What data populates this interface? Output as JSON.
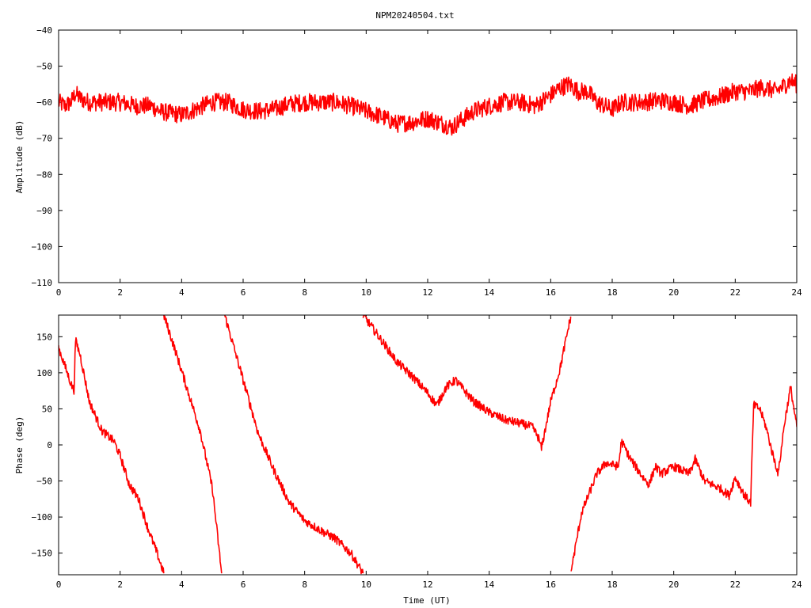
{
  "chart_data": [
    {
      "type": "line",
      "title": "NPM20240504.txt",
      "xlabel": "",
      "ylabel": "Amplitude (dB)",
      "xlim": [
        0,
        24
      ],
      "ylim": [
        -110,
        -40
      ],
      "xticks": [
        "0",
        "2",
        "4",
        "6",
        "8",
        "10",
        "12",
        "14",
        "16",
        "18",
        "20",
        "22",
        "24"
      ],
      "yticks": [
        "-40",
        "-50",
        "-60",
        "-70",
        "-80",
        "-90",
        "-100",
        "-110"
      ],
      "color": "#ff0000",
      "noise_band": 2.5,
      "series": [
        {
          "x": [
            0,
            0.2,
            0.4,
            0.55,
            0.7,
            1.0,
            1.5,
            2.0,
            2.5,
            3.0,
            3.3,
            3.6,
            4.0,
            4.3,
            4.7,
            5.0,
            5.5,
            6.0,
            6.5,
            7.0,
            7.5,
            8.0,
            8.5,
            9.0,
            9.5,
            10.0,
            10.5,
            11.0,
            11.5,
            12.0,
            12.5,
            12.8,
            13.0,
            13.5,
            14.0,
            14.5,
            15.0,
            15.5,
            16.0,
            16.3,
            16.6,
            16.9,
            17.2,
            17.5,
            18.0,
            18.3,
            18.6,
            19.0,
            19.5,
            20.0,
            20.5,
            21.0,
            21.5,
            22.0,
            22.5,
            22.8,
            23.0,
            23.3,
            23.5,
            23.8,
            24.0
          ],
          "y": [
            -60,
            -61,
            -60,
            -57.5,
            -59,
            -60,
            -60,
            -60,
            -61,
            -61,
            -62.5,
            -63,
            -63.5,
            -62.5,
            -61,
            -60,
            -60,
            -62,
            -62.5,
            -62,
            -60.5,
            -60,
            -60,
            -60,
            -61,
            -62.5,
            -64,
            -66,
            -65.5,
            -64.5,
            -66,
            -67,
            -65.5,
            -62.5,
            -61,
            -60,
            -60,
            -61,
            -58,
            -56,
            -55,
            -57,
            -57,
            -60,
            -62,
            -60,
            -60,
            -60,
            -59.5,
            -60,
            -61,
            -59.5,
            -58.5,
            -57,
            -57,
            -56,
            -56,
            -57,
            -56,
            -54,
            -55
          ]
        }
      ]
    },
    {
      "type": "line",
      "title": "",
      "xlabel": "Time (UT)",
      "ylabel": "Phase (deg)",
      "xlim": [
        0,
        24
      ],
      "ylim": [
        -180,
        180
      ],
      "xticks": [
        "0",
        "2",
        "4",
        "6",
        "8",
        "10",
        "12",
        "14",
        "16",
        "18",
        "20",
        "22",
        "24"
      ],
      "yticks": [
        "150",
        "100",
        "50",
        "0",
        "-50",
        "-100",
        "-150"
      ],
      "color": "#ff0000",
      "noise_band": 6,
      "series": [
        {
          "x": [
            0,
            0.2,
            0.4,
            0.5,
            0.55,
            0.7,
            1.0,
            1.4,
            1.8,
            2.0,
            2.3,
            2.6,
            2.9,
            3.2,
            3.42,
            3.42,
            3.8,
            4.2,
            4.6,
            5.0,
            5.3,
            5.4,
            5.6,
            6.0,
            6.5,
            7.0,
            7.5,
            8.0,
            8.5,
            9.0,
            9.5,
            9.9,
            9.9,
            10.5,
            11.0,
            11.5,
            12.0,
            12.3,
            12.6,
            12.9,
            13.2,
            13.5,
            14.0,
            14.5,
            15.0,
            15.4,
            15.6,
            15.7,
            16.0,
            16.3,
            16.65,
            16.65,
            17.0,
            17.5,
            17.8,
            18.2,
            18.3,
            18.6,
            19.0,
            19.2,
            19.4,
            19.6,
            20.0,
            20.5,
            20.7,
            21.0,
            21.5,
            21.8,
            22.0,
            22.3,
            22.5,
            22.6,
            22.8,
            23.0,
            23.2,
            23.4,
            23.6,
            23.8,
            24.0
          ],
          "y": [
            135,
            110,
            85,
            75,
            145,
            125,
            60,
            20,
            5,
            -15,
            -55,
            -75,
            -115,
            -150,
            -178,
            180,
            130,
            75,
            20,
            -60,
            -178,
            180,
            150,
            90,
            15,
            -35,
            -80,
            -105,
            -118,
            -130,
            -150,
            -178,
            180,
            145,
            115,
            95,
            72,
            55,
            80,
            90,
            75,
            60,
            45,
            35,
            30,
            25,
            10,
            -5,
            60,
            105,
            178,
            -178,
            -95,
            -40,
            -25,
            -30,
            5,
            -20,
            -45,
            -55,
            -30,
            -40,
            -30,
            -40,
            -20,
            -50,
            -60,
            -70,
            -45,
            -70,
            -80,
            55,
            50,
            25,
            -10,
            -40,
            30,
            80,
            25
          ]
        }
      ]
    }
  ]
}
